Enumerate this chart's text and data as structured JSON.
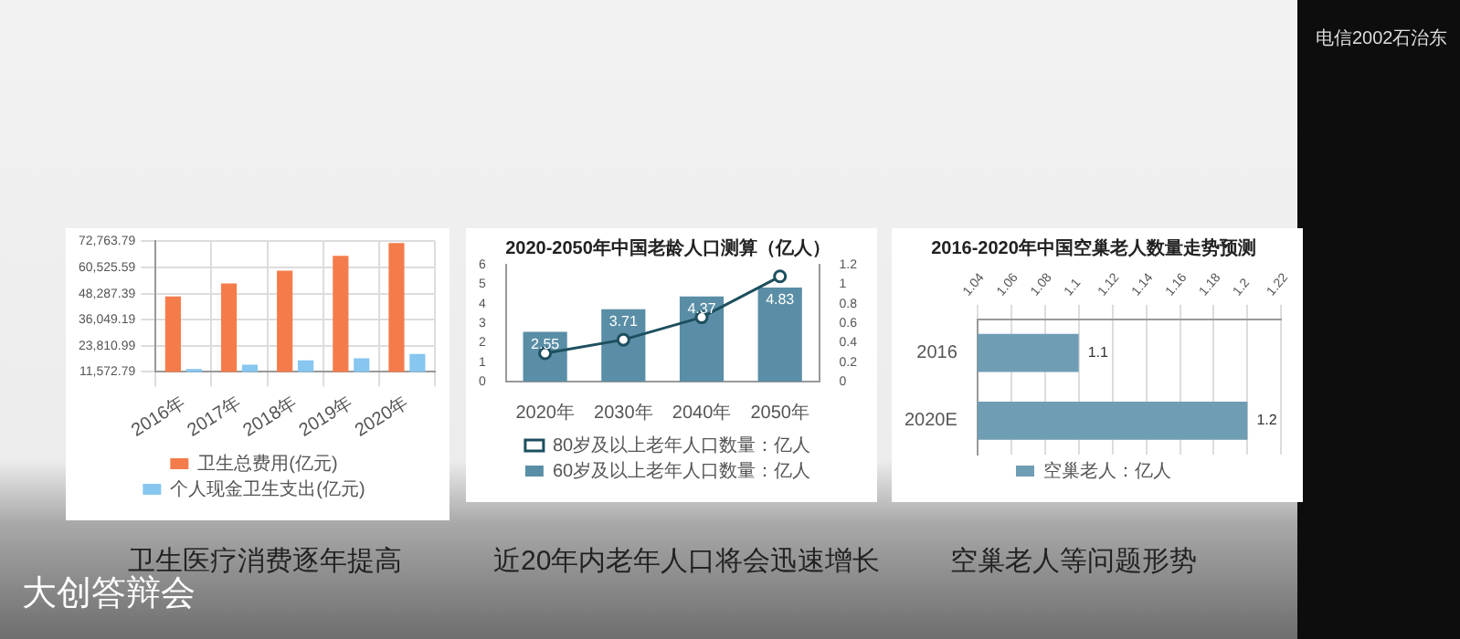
{
  "chart_data": [
    {
      "type": "bar",
      "categories": [
        "2016年",
        "2017年",
        "2018年",
        "2019年",
        "2020年"
      ],
      "series": [
        {
          "name": "卫生总费用(亿元)",
          "color": "#f47c4b",
          "values": [
            47000,
            53000,
            59000,
            66000,
            72000
          ]
        },
        {
          "name": "个人现金卫生支出(亿元)",
          "color": "#86c6ef",
          "values": [
            13000,
            15000,
            17000,
            18000,
            20000
          ]
        }
      ],
      "ylim": [
        11572.79,
        72763.79
      ],
      "yticks": [
        {
          "value": 11572.79,
          "label": "11,572.79"
        },
        {
          "value": 23810.99,
          "label": "23,810.99"
        },
        {
          "value": 36049.19,
          "label": "36,049.19"
        },
        {
          "value": 48287.39,
          "label": "48,287.39"
        },
        {
          "value": 60525.59,
          "label": "60,525.59"
        },
        {
          "value": 72763.79,
          "label": "72,763.79"
        }
      ],
      "grid": true,
      "legend": "bottom",
      "annotations": [
        "卫生医疗消费逐年提高"
      ]
    },
    {
      "type": "bar",
      "title": "2020-2050年中国老龄人口测算（亿人）",
      "categories": [
        "2020年",
        "2030年",
        "2040年",
        "2050年"
      ],
      "series": [
        {
          "name": "60岁及以上老年人口数量：亿人",
          "color": "#5a8ea6",
          "values": [
            2.55,
            3.71,
            4.37,
            4.83
          ],
          "value_labels": [
            "2.55",
            "3.71",
            "4.37",
            "4.83"
          ]
        },
        {
          "name": "80岁及以上老年人口数量：亿人",
          "type": "line",
          "axis": "y2",
          "color": "#1d4f5e",
          "values": [
            0.29,
            0.43,
            0.66,
            1.08
          ]
        }
      ],
      "ylim": [
        0,
        6
      ],
      "yticks": [
        0,
        1,
        2,
        3,
        4,
        5,
        6
      ],
      "y2lim": [
        0,
        1.2
      ],
      "y2ticks": [
        0,
        0.2,
        0.4,
        0.6,
        0.8,
        1,
        1.2
      ],
      "marker": "circle",
      "legend": "bottom",
      "annotations": [
        "近20年内老年人口将会迅速增长"
      ]
    },
    {
      "type": "bar",
      "orientation": "horizontal",
      "title": "2016-2020年中国空巢老人数量走势预测",
      "categories": [
        "2016",
        "2020E"
      ],
      "series": [
        {
          "name": "空巢老人：亿人",
          "color": "#6f9db3",
          "values": [
            1.1,
            1.2
          ]
        }
      ],
      "xlim": [
        1.04,
        1.22
      ],
      "xticks": [
        1.04,
        1.06,
        1.08,
        1.1,
        1.12,
        1.14,
        1.16,
        1.18,
        1.2,
        1.22
      ],
      "grid": "x",
      "data_labels": true,
      "legend": "bottom",
      "annotations": [
        "空巢老人等问题形势"
      ]
    },
    {
      "type": "other",
      "annotations": [
        "大创答辩会",
        "电信2002石治东"
      ]
    }
  ]
}
